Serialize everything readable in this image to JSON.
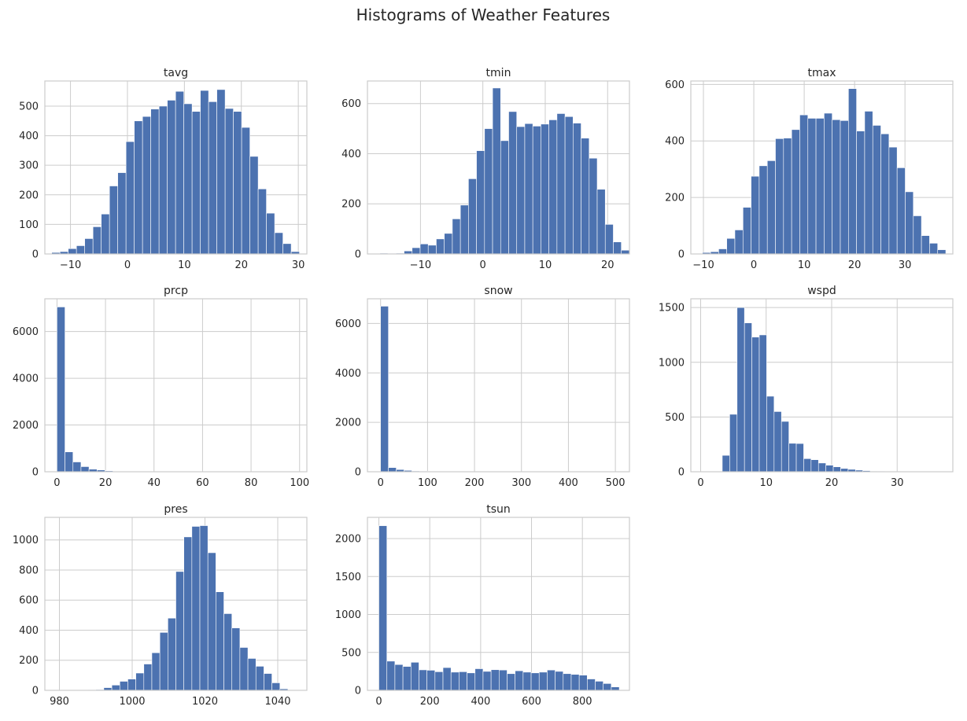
{
  "figure": {
    "title": "Histograms of Weather Features",
    "bar_color": "#4c72b0"
  },
  "chart_data": [
    {
      "type": "bar",
      "title": "tavg",
      "xlabel": "",
      "ylabel": "",
      "xlim": [
        -14.5,
        31.5
      ],
      "ylim": [
        0,
        585
      ],
      "bin_start": -13.3,
      "bin_width": 1.45,
      "values": [
        5,
        8,
        18,
        28,
        52,
        92,
        135,
        230,
        275,
        380,
        450,
        465,
        490,
        500,
        520,
        550,
        508,
        482,
        553,
        515,
        556,
        492,
        482,
        428,
        330,
        220,
        138,
        72,
        35,
        8
      ],
      "xticks": [
        -10,
        0,
        10,
        20,
        30
      ],
      "xtick_labels": [
        "−10",
        "0",
        "10",
        "20",
        "30"
      ],
      "yticks": [
        0,
        100,
        200,
        300,
        400,
        500
      ],
      "ytick_labels": [
        "0",
        "100",
        "200",
        "300",
        "400",
        "500"
      ],
      "grid": true
    },
    {
      "type": "bar",
      "title": "tmin",
      "xlabel": "",
      "ylabel": "",
      "xlim": [
        -18.5,
        23.5
      ],
      "ylim": [
        0,
        690
      ],
      "bin_start": -16.5,
      "bin_width": 1.29,
      "values": [
        3,
        2,
        3,
        12,
        25,
        40,
        35,
        60,
        82,
        140,
        195,
        300,
        412,
        500,
        662,
        452,
        568,
        508,
        520,
        510,
        518,
        535,
        560,
        548,
        522,
        462,
        382,
        258,
        118,
        48,
        15
      ],
      "xticks": [
        -10,
        0,
        10,
        20
      ],
      "xtick_labels": [
        "−10",
        "0",
        "10",
        "20"
      ],
      "yticks": [
        0,
        200,
        400,
        600
      ],
      "ytick_labels": [
        "0",
        "200",
        "400",
        "600"
      ],
      "grid": true
    },
    {
      "type": "bar",
      "title": "tmax",
      "xlabel": "",
      "ylabel": "",
      "xlim": [
        -12.5,
        39.5
      ],
      "ylim": [
        0,
        612
      ],
      "bin_start": -10.2,
      "bin_width": 1.61,
      "values": [
        5,
        8,
        18,
        55,
        85,
        165,
        275,
        312,
        330,
        408,
        410,
        440,
        492,
        480,
        480,
        498,
        475,
        472,
        585,
        435,
        505,
        455,
        425,
        378,
        305,
        220,
        135,
        65,
        38,
        15
      ],
      "xticks": [
        -10,
        0,
        10,
        20,
        30
      ],
      "xtick_labels": [
        "−10",
        "0",
        "10",
        "20",
        "30"
      ],
      "yticks": [
        0,
        200,
        400,
        600
      ],
      "ytick_labels": [
        "0",
        "200",
        "400",
        "600"
      ],
      "grid": true
    },
    {
      "type": "bar",
      "title": "prcp",
      "xlabel": "",
      "ylabel": "",
      "xlim": [
        -5,
        103
      ],
      "ylim": [
        0,
        7400
      ],
      "bin_start": 0,
      "bin_width": 3.3,
      "values": [
        7050,
        850,
        420,
        220,
        110,
        75,
        40,
        25,
        15,
        10,
        6,
        4,
        3,
        2,
        2,
        1,
        1,
        1,
        1,
        1,
        0,
        0,
        0,
        0,
        0,
        0,
        0,
        0,
        0,
        1
      ],
      "xticks": [
        0,
        20,
        40,
        60,
        80,
        100
      ],
      "xtick_labels": [
        "0",
        "20",
        "40",
        "60",
        "80",
        "100"
      ],
      "yticks": [
        0,
        2000,
        4000,
        6000
      ],
      "ytick_labels": [
        "0",
        "2000",
        "4000",
        "6000"
      ],
      "grid": true
    },
    {
      "type": "bar",
      "title": "snow",
      "xlabel": "",
      "ylabel": "",
      "xlim": [
        -28,
        530
      ],
      "ylim": [
        0,
        7000
      ],
      "bin_start": 0,
      "bin_width": 16.7,
      "values": [
        6700,
        170,
        90,
        55,
        30,
        20,
        14,
        10,
        8,
        6,
        4,
        3,
        3,
        2,
        2,
        1,
        1,
        1,
        1,
        1,
        0,
        0,
        0,
        0,
        0,
        0,
        0,
        0,
        0,
        1
      ],
      "xticks": [
        0,
        100,
        200,
        300,
        400,
        500
      ],
      "xtick_labels": [
        "0",
        "100",
        "200",
        "300",
        "400",
        "500"
      ],
      "yticks": [
        0,
        2000,
        4000,
        6000
      ],
      "ytick_labels": [
        "0",
        "2000",
        "4000",
        "6000"
      ],
      "grid": true
    },
    {
      "type": "bar",
      "title": "wspd",
      "xlabel": "",
      "ylabel": "",
      "xlim": [
        -1.5,
        38.5
      ],
      "ylim": [
        0,
        1580
      ],
      "bin_start": 3.3,
      "bin_width": 1.13,
      "values": [
        150,
        525,
        1500,
        1360,
        1230,
        1250,
        690,
        550,
        460,
        260,
        258,
        120,
        110,
        80,
        60,
        45,
        30,
        22,
        15,
        10,
        6,
        4,
        2,
        1,
        1,
        1,
        0,
        0,
        0,
        1
      ],
      "xticks": [
        0,
        10,
        20,
        30
      ],
      "xtick_labels": [
        "0",
        "10",
        "20",
        "30"
      ],
      "yticks": [
        0,
        500,
        1000,
        1500
      ],
      "ytick_labels": [
        "0",
        "500",
        "1000",
        "1500"
      ],
      "grid": true
    },
    {
      "type": "bar",
      "title": "pres",
      "xlabel": "",
      "ylabel": "",
      "xlim": [
        976,
        1048
      ],
      "ylim": [
        0,
        1150
      ],
      "bin_start": 979,
      "bin_width": 2.2,
      "values": [
        1,
        1,
        2,
        2,
        3,
        5,
        18,
        35,
        60,
        75,
        115,
        175,
        250,
        385,
        480,
        790,
        1020,
        1090,
        1095,
        915,
        655,
        510,
        415,
        285,
        212,
        160,
        112,
        50,
        10,
        2
      ],
      "xticks": [
        980,
        1000,
        1020,
        1040
      ],
      "xtick_labels": [
        "980",
        "1000",
        "1020",
        "1040"
      ],
      "yticks": [
        0,
        200,
        400,
        600,
        800,
        1000
      ],
      "ytick_labels": [
        "0",
        "200",
        "400",
        "600",
        "800",
        "1000"
      ],
      "grid": true
    },
    {
      "type": "bar",
      "title": "tsun",
      "xlabel": "",
      "ylabel": "",
      "xlim": [
        -45,
        985
      ],
      "ylim": [
        0,
        2280
      ],
      "bin_start": 0,
      "bin_width": 31.5,
      "values": [
        2170,
        385,
        340,
        315,
        370,
        270,
        265,
        245,
        300,
        240,
        245,
        230,
        285,
        250,
        272,
        268,
        220,
        258,
        240,
        230,
        240,
        268,
        250,
        220,
        210,
        200,
        150,
        120,
        90,
        45
      ],
      "xticks": [
        0,
        200,
        400,
        600,
        800
      ],
      "xtick_labels": [
        "0",
        "200",
        "400",
        "600",
        "800"
      ],
      "yticks": [
        0,
        500,
        1000,
        1500,
        2000
      ],
      "ytick_labels": [
        "0",
        "500",
        "1000",
        "1500",
        "2000"
      ],
      "grid": true
    }
  ]
}
